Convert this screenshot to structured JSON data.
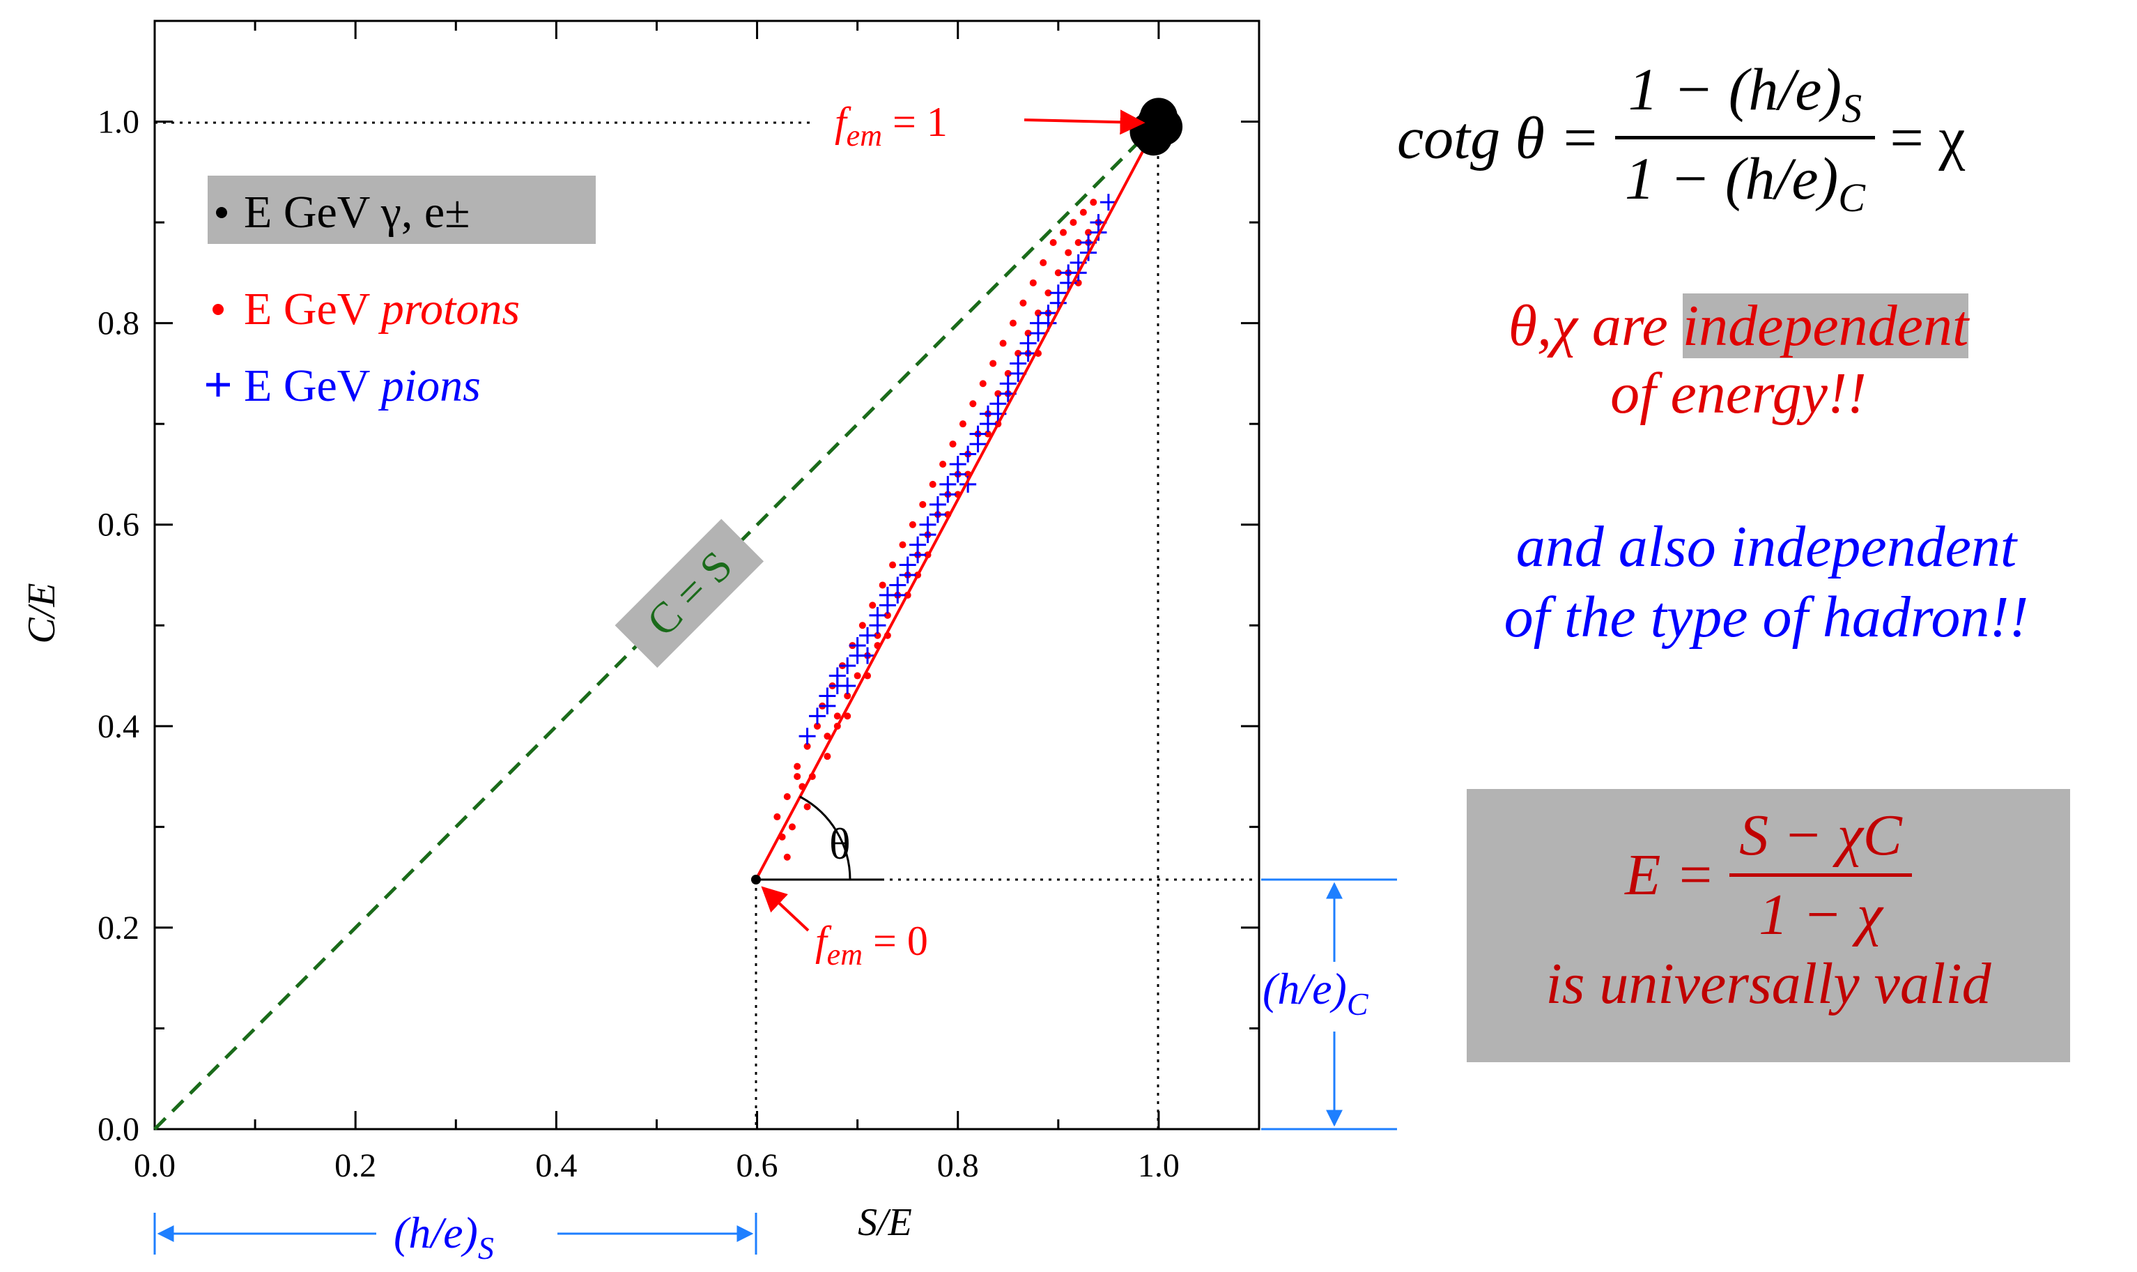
{
  "chart_data": {
    "type": "scatter",
    "xlabel": "S/E",
    "ylabel": "C/E",
    "xlim": [
      0.0,
      1.1
    ],
    "ylim": [
      0.0,
      1.1
    ],
    "x_ticks": [
      "0.0",
      "0.2",
      "0.4",
      "0.6",
      "0.8",
      "1.0"
    ],
    "y_ticks": [
      "0.0",
      "0.2",
      "0.4",
      "0.6",
      "0.8",
      "1.0"
    ],
    "legend": {
      "electrons": "E GeV γ, e±",
      "protons_prefix": "E GeV ",
      "protons_italic": "protons",
      "pions_prefix": "E GeV ",
      "pions_italic": "pions"
    },
    "colors": {
      "electrons": "#000000",
      "protons": "#ff0000",
      "pions": "#0000ff",
      "diagonal": "#1a6b1a",
      "bracket": "#1e7fff"
    },
    "series": [
      {
        "name": "E GeV γ, e±",
        "marker": "dot",
        "x": [
          0.99,
          0.998,
          1.005,
          0.995,
          1.0
        ],
        "y": [
          0.99,
          1.0,
          0.995,
          0.985,
          1.005
        ]
      },
      {
        "name": "E GeV protons",
        "marker": "dot",
        "x": [
          0.62,
          0.625,
          0.63,
          0.635,
          0.64,
          0.645,
          0.65,
          0.655,
          0.66,
          0.665,
          0.67,
          0.675,
          0.68,
          0.685,
          0.69,
          0.695,
          0.7,
          0.705,
          0.71,
          0.715,
          0.72,
          0.725,
          0.73,
          0.735,
          0.74,
          0.745,
          0.75,
          0.755,
          0.76,
          0.765,
          0.77,
          0.775,
          0.78,
          0.785,
          0.79,
          0.795,
          0.8,
          0.805,
          0.81,
          0.815,
          0.82,
          0.825,
          0.83,
          0.835,
          0.84,
          0.845,
          0.85,
          0.855,
          0.86,
          0.865,
          0.87,
          0.875,
          0.88,
          0.885,
          0.89,
          0.895,
          0.9,
          0.905,
          0.91,
          0.915,
          0.92,
          0.925,
          0.93,
          0.935,
          0.94,
          0.63,
          0.65,
          0.67,
          0.69,
          0.71,
          0.73,
          0.75,
          0.77,
          0.79,
          0.81,
          0.83,
          0.85,
          0.87,
          0.89,
          0.91,
          0.93,
          0.64,
          0.68,
          0.72,
          0.76,
          0.8,
          0.84,
          0.88,
          0.92
        ],
        "y": [
          0.31,
          0.29,
          0.33,
          0.3,
          0.36,
          0.34,
          0.38,
          0.35,
          0.4,
          0.42,
          0.39,
          0.44,
          0.41,
          0.46,
          0.43,
          0.48,
          0.45,
          0.5,
          0.47,
          0.52,
          0.49,
          0.54,
          0.51,
          0.56,
          0.53,
          0.58,
          0.55,
          0.6,
          0.57,
          0.62,
          0.59,
          0.64,
          0.61,
          0.66,
          0.63,
          0.68,
          0.65,
          0.7,
          0.67,
          0.72,
          0.69,
          0.74,
          0.71,
          0.76,
          0.73,
          0.78,
          0.75,
          0.8,
          0.77,
          0.82,
          0.79,
          0.84,
          0.81,
          0.86,
          0.83,
          0.88,
          0.85,
          0.89,
          0.87,
          0.9,
          0.88,
          0.91,
          0.89,
          0.92,
          0.9,
          0.27,
          0.32,
          0.37,
          0.41,
          0.45,
          0.49,
          0.53,
          0.57,
          0.61,
          0.65,
          0.69,
          0.73,
          0.77,
          0.81,
          0.85,
          0.88,
          0.35,
          0.4,
          0.48,
          0.55,
          0.63,
          0.7,
          0.77,
          0.84
        ]
      },
      {
        "name": "E GeV pions",
        "marker": "plus",
        "x": [
          0.65,
          0.66,
          0.67,
          0.68,
          0.69,
          0.7,
          0.71,
          0.72,
          0.73,
          0.74,
          0.75,
          0.76,
          0.77,
          0.78,
          0.79,
          0.8,
          0.81,
          0.82,
          0.83,
          0.84,
          0.85,
          0.86,
          0.87,
          0.88,
          0.89,
          0.9,
          0.91,
          0.92,
          0.93,
          0.94,
          0.95,
          0.67,
          0.69,
          0.71,
          0.73,
          0.75,
          0.77,
          0.79,
          0.81,
          0.83,
          0.85,
          0.87,
          0.89,
          0.91,
          0.93,
          0.68,
          0.72,
          0.76,
          0.8,
          0.84,
          0.88,
          0.92,
          0.7,
          0.74,
          0.78,
          0.82,
          0.86,
          0.9,
          0.94
        ],
        "y": [
          0.39,
          0.41,
          0.43,
          0.45,
          0.44,
          0.47,
          0.49,
          0.5,
          0.52,
          0.54,
          0.56,
          0.58,
          0.59,
          0.61,
          0.63,
          0.65,
          0.67,
          0.68,
          0.7,
          0.72,
          0.74,
          0.76,
          0.78,
          0.79,
          0.81,
          0.83,
          0.85,
          0.86,
          0.88,
          0.9,
          0.92,
          0.42,
          0.46,
          0.47,
          0.53,
          0.55,
          0.6,
          0.64,
          0.64,
          0.71,
          0.73,
          0.77,
          0.8,
          0.84,
          0.87,
          0.44,
          0.51,
          0.57,
          0.66,
          0.71,
          0.8,
          0.85,
          0.48,
          0.53,
          0.62,
          0.69,
          0.75,
          0.82,
          0.89
        ]
      }
    ],
    "lines": {
      "diagonal_label": "C = S",
      "fit_from": [
        0.6,
        0.25
      ],
      "fit_to": [
        1.0,
        1.0
      ],
      "angle_label": "θ",
      "fem1_prefix": "f",
      "fem1_sub": "em",
      "fem1_suffix": " = 1",
      "fem0_prefix": "f",
      "fem0_sub": "em",
      "fem0_suffix": " = 0",
      "he_s_main": "(h/e)",
      "he_s_sub": "S",
      "he_c_main": "(h/e)",
      "he_c_sub": "C"
    }
  },
  "formula": {
    "lhs": "cotg θ = ",
    "num_main": "1 − (h/e)",
    "num_sub": "S",
    "den_main": "1 − (h/e)",
    "den_sub": "C",
    "rhs": " = χ"
  },
  "note1": {
    "line1_prefix": "θ,χ are ",
    "line1_highlight": "independent",
    "line2": "of energy!!"
  },
  "note2": {
    "line1": "and also independent",
    "line2": "of the type of hadron!!"
  },
  "energy_box": {
    "lhs": "E = ",
    "num": "S − χC",
    "den": "1 − χ",
    "caption": "is universally valid"
  }
}
